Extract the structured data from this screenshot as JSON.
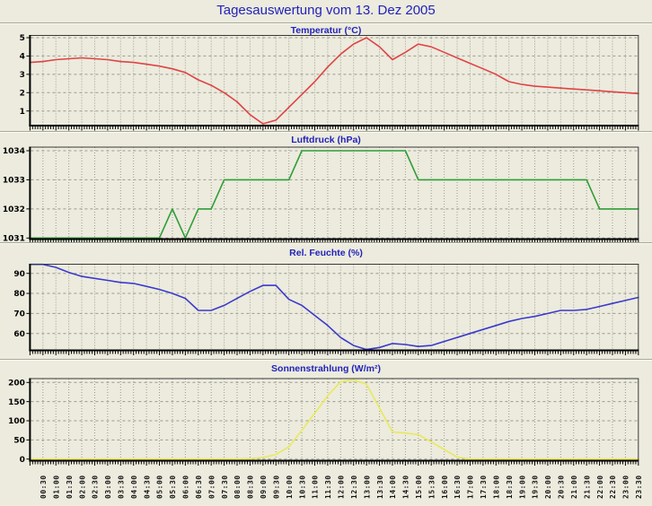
{
  "page": {
    "title": "Tagesauswertung vom 13. Dez 2005",
    "background": "#ECEBDE",
    "title_color": "#2222BB"
  },
  "x_axis": {
    "start_hour": 0,
    "step_hours": 0.5,
    "tick_interval_minutes": 30,
    "labels": [
      "00:30",
      "01:00",
      "01:30",
      "02:00",
      "02:30",
      "03:00",
      "03:30",
      "04:00",
      "04:30",
      "05:00",
      "05:30",
      "06:00",
      "06:30",
      "07:00",
      "07:30",
      "08:00",
      "08:30",
      "09:00",
      "09:30",
      "10:00",
      "10:30",
      "11:00",
      "11:30",
      "12:00",
      "12:30",
      "13:00",
      "13:30",
      "14:00",
      "14:30",
      "15:00",
      "15:30",
      "16:00",
      "16:30",
      "17:00",
      "17:30",
      "18:00",
      "18:30",
      "19:00",
      "19:30",
      "20:00",
      "20:30",
      "21:00",
      "21:30",
      "22:00",
      "22:30",
      "23:00",
      "23:30"
    ]
  },
  "chart_data": [
    {
      "type": "line",
      "title": "Temperatur (°C)",
      "series_name": "Temperatur",
      "unit": "°C",
      "color": "#DF4444",
      "grid": true,
      "legend_position": "none",
      "ylim": [
        0.2,
        5.1
      ],
      "y_ticks": [
        "5",
        "4",
        "3",
        "2",
        "1"
      ],
      "y_tick_values": [
        5,
        4,
        3,
        2,
        1
      ],
      "x_start_hour": 0,
      "x_step_hours": 0.5,
      "values": [
        3.65,
        3.7,
        3.8,
        3.85,
        3.9,
        3.85,
        3.8,
        3.7,
        3.65,
        3.55,
        3.45,
        3.3,
        3.1,
        2.7,
        2.4,
        2.0,
        1.5,
        0.8,
        0.3,
        0.5,
        1.2,
        1.9,
        2.6,
        3.4,
        4.1,
        4.65,
        5.0,
        4.5,
        3.8,
        4.2,
        4.65,
        4.5,
        4.2,
        3.9,
        3.6,
        3.3,
        3.0,
        2.6,
        2.45,
        2.35,
        2.3,
        2.25,
        2.2,
        2.15,
        2.1,
        2.05,
        2.0,
        1.95
      ]
    },
    {
      "type": "line",
      "title": "Luftdruck (hPa)",
      "series_name": "Luftdruck",
      "unit": "hPa",
      "color": "#2F9E37",
      "grid": true,
      "legend_position": "none",
      "ylim": [
        1030.9,
        1034.1
      ],
      "y_ticks": [
        "1034",
        "1033",
        "1032",
        "1031"
      ],
      "y_tick_values": [
        1034,
        1033,
        1032,
        1031
      ],
      "x_start_hour": 0,
      "x_step_hours": 0.5,
      "values": [
        1031,
        1031,
        1031,
        1031,
        1031,
        1031,
        1031,
        1031,
        1031,
        1031,
        1031,
        1032,
        1031,
        1032,
        1032,
        1033,
        1033,
        1033,
        1033,
        1033,
        1033,
        1034,
        1034,
        1034,
        1034,
        1034,
        1034,
        1034,
        1034,
        1034,
        1033,
        1033,
        1033,
        1033,
        1033,
        1033,
        1033,
        1033,
        1033,
        1033,
        1033,
        1033,
        1033,
        1033,
        1032,
        1032,
        1032,
        1032
      ]
    },
    {
      "type": "line",
      "title": "Rel. Feuchte (%)",
      "series_name": "Rel. Feuchte",
      "unit": "%",
      "color": "#3A3ACB",
      "grid": true,
      "legend_position": "none",
      "ylim": [
        51.5,
        94.6
      ],
      "y_ticks": [
        "90",
        "80",
        "70",
        "60"
      ],
      "y_tick_values": [
        90,
        80,
        70,
        60
      ],
      "x_start_hour": 0,
      "x_step_hours": 0.5,
      "values": [
        94.5,
        94.5,
        93.0,
        90.5,
        88.5,
        87.5,
        86.5,
        85.5,
        85.0,
        83.5,
        82.0,
        80.0,
        77.5,
        71.5,
        71.5,
        74.0,
        77.5,
        81.0,
        84.0,
        84.0,
        77.0,
        74.0,
        69.0,
        64.0,
        58.0,
        54.0,
        52.0,
        53.0,
        55.0,
        54.5,
        53.5,
        54.0,
        56.0,
        58.0,
        60.0,
        62.0,
        64.0,
        66.0,
        67.5,
        68.5,
        70.0,
        71.5,
        71.5,
        72.0,
        73.5,
        75.0,
        76.5,
        78.0
      ]
    },
    {
      "type": "line",
      "title": "Sonnenstrahlung (W/m²)",
      "series_name": "Sonnenstrahlung",
      "unit": "W/m²",
      "color": "#E9E95C",
      "grid": true,
      "legend_position": "none",
      "ylim": [
        -4,
        210
      ],
      "y_ticks": [
        "200",
        "150",
        "100",
        "50",
        "0"
      ],
      "y_tick_values": [
        200,
        150,
        100,
        50,
        0
      ],
      "x_start_hour": 0,
      "x_step_hours": 0.5,
      "values": [
        0,
        0,
        0,
        0,
        0,
        0,
        0,
        0,
        0,
        0,
        0,
        0,
        0,
        0,
        0,
        0,
        0,
        1,
        4,
        12,
        32,
        75,
        120,
        165,
        202,
        207,
        195,
        133,
        71,
        68,
        64,
        45,
        25,
        5,
        0,
        0,
        0,
        0,
        0,
        0,
        0,
        0,
        0,
        0,
        0,
        0,
        0,
        0
      ]
    }
  ]
}
